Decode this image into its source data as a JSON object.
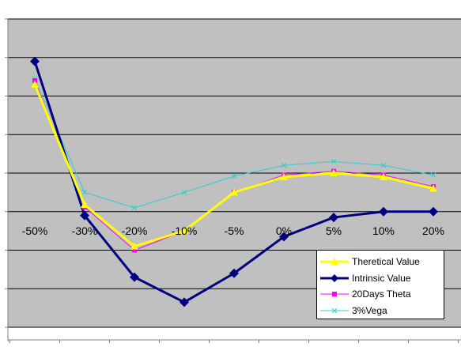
{
  "chart_data": {
    "type": "line",
    "categories": [
      "-50%",
      "-30%",
      "-20%",
      "-10%",
      "-5%",
      "0%",
      "5%",
      "10%",
      "20%"
    ],
    "ylim": [
      -3,
      5
    ],
    "grid": true,
    "legend_position": "bottom-right",
    "series": [
      {
        "name": "Theretical Value",
        "color": "#ffff00",
        "marker": "triangle",
        "values": [
          3.3,
          0.18,
          -0.9,
          -0.5,
          0.5,
          0.9,
          1.0,
          0.9,
          0.6
        ]
      },
      {
        "name": "Intrinsic Value",
        "color": "#000080",
        "marker": "diamond",
        "values": [
          3.9,
          -0.1,
          -1.7,
          -2.35,
          -1.6,
          -0.65,
          -0.15,
          0.0,
          0.0
        ]
      },
      {
        "name": "20Days Theta",
        "color": "#ff00ff",
        "marker": "square",
        "values": [
          3.4,
          0.12,
          -1.0,
          -0.5,
          0.5,
          0.95,
          1.05,
          0.95,
          0.65
        ]
      },
      {
        "name": "3%Vega",
        "color": "#33cccc",
        "marker": "x",
        "values": [
          3.45,
          0.5,
          0.1,
          0.5,
          0.92,
          1.2,
          1.3,
          1.2,
          0.95
        ]
      }
    ]
  }
}
